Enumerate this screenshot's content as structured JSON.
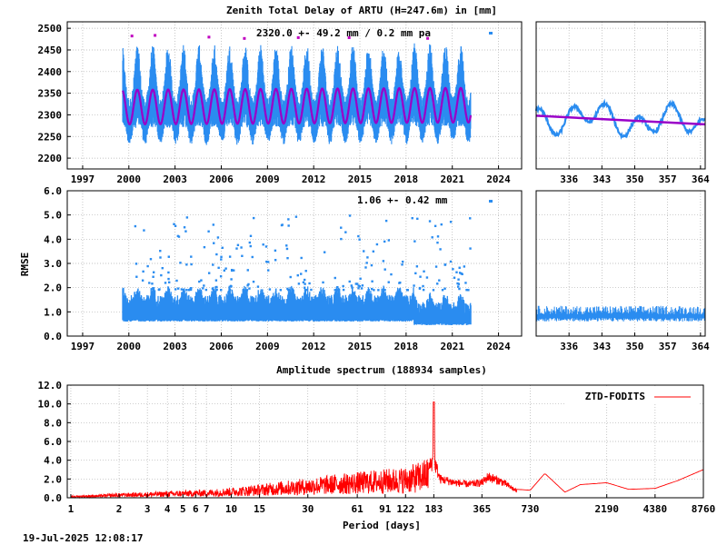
{
  "footer_timestamp": "19-Jul-2025 12:08:17",
  "colors": {
    "observations": "#2a8cf0",
    "model": "#9a00c8",
    "outlier": "#c000c0",
    "spectrum": "#ff0000"
  },
  "chart_data": [
    {
      "type": "scatter",
      "title": "Zenith Total Delay of ARTU (H=247.6m) in [mm]",
      "annotation": "2320.0 +-  49.2 mm /  0.2 mm pa",
      "ylabel": "",
      "xlim": [
        1996,
        2025.5
      ],
      "ylim": [
        2175,
        2515
      ],
      "xticks": [
        "1997",
        "2000",
        "2003",
        "2006",
        "2009",
        "2012",
        "2015",
        "2018",
        "2021",
        "2024"
      ],
      "yticks": [
        "2200",
        "2250",
        "2300",
        "2350",
        "2400",
        "2450",
        "2500"
      ],
      "grid": true,
      "data_start_year": 1999.6,
      "data_end_year": 2022.2,
      "mean_mm": 2320.0,
      "std_mm": 49.2,
      "trend_mm_per_year": 0.2,
      "annual_model_amplitude_mm": 40,
      "observation_range_mm": [
        2190,
        2480
      ],
      "detail_panel": {
        "xlim": [
          329,
          365
        ],
        "xticks": [
          "336",
          "343",
          "350",
          "357",
          "364"
        ],
        "ylim": [
          2175,
          2515
        ],
        "model_start_mm": 2298,
        "model_end_mm": 2278
      }
    },
    {
      "type": "scatter",
      "title": "",
      "annotation": "1.06 +-  0.42 mm",
      "ylabel": "RMSE",
      "xlim": [
        1996,
        2025.5
      ],
      "ylim": [
        0,
        6
      ],
      "xticks": [
        "1997",
        "2000",
        "2003",
        "2006",
        "2009",
        "2012",
        "2015",
        "2018",
        "2021",
        "2024"
      ],
      "yticks": [
        "0.0",
        "1.0",
        "2.0",
        "3.0",
        "4.0",
        "5.0",
        "6.0"
      ],
      "grid": true,
      "mean_mm": 1.06,
      "std_mm": 0.42,
      "bulk_range_mm": [
        0.6,
        1.8
      ],
      "detail_panel": {
        "xlim": [
          329,
          365
        ],
        "xticks": [
          "336",
          "343",
          "350",
          "357",
          "364"
        ],
        "ylim": [
          0,
          6
        ],
        "level_mm": 0.8
      }
    },
    {
      "type": "line",
      "title": "Amplitude spectrum (188934 samples)",
      "xlabel": "Period [days]",
      "ylabel": "",
      "xscale": "log",
      "xlim": [
        0.95,
        8760
      ],
      "ylim": [
        0,
        12
      ],
      "xticks": [
        "1",
        "2",
        "3",
        "4",
        "5",
        "6",
        "7",
        "10",
        "15",
        "30",
        "61",
        "91",
        "122",
        "183",
        "365",
        "730",
        "2190",
        "4380",
        "8760"
      ],
      "xtick_values": [
        1,
        2,
        3,
        4,
        5,
        6,
        7,
        10,
        15,
        30,
        61,
        91,
        122,
        183,
        365,
        730,
        2190,
        4380,
        8760
      ],
      "yticks": [
        "0.0",
        "2.0",
        "4.0",
        "6.0",
        "8.0",
        "10.0",
        "12.0"
      ],
      "legend": {
        "label": "ZTD-FODITS",
        "position": "top-right"
      },
      "series": [
        {
          "name": "ZTD-FODITS",
          "x": [
            1,
            1.5,
            2,
            3,
            5,
            7,
            10,
            15,
            20,
            30,
            45,
            61,
            91,
            122,
            150,
            170,
            180,
            183,
            186,
            200,
            250,
            300,
            365,
            400,
            500,
            600,
            730,
            900,
            1200,
            1500,
            2190,
            3000,
            4380,
            6000,
            8760
          ],
          "y": [
            0.2,
            0.3,
            0.45,
            0.55,
            0.7,
            0.8,
            1.0,
            1.3,
            1.6,
            1.9,
            2.3,
            2.5,
            2.8,
            3.0,
            3.5,
            4.0,
            4.8,
            10.2,
            4.6,
            2.5,
            2.0,
            1.8,
            2.0,
            2.8,
            2.0,
            0.9,
            0.8,
            2.6,
            0.6,
            1.4,
            1.6,
            0.9,
            1.0,
            1.8,
            3.0
          ]
        }
      ]
    }
  ]
}
